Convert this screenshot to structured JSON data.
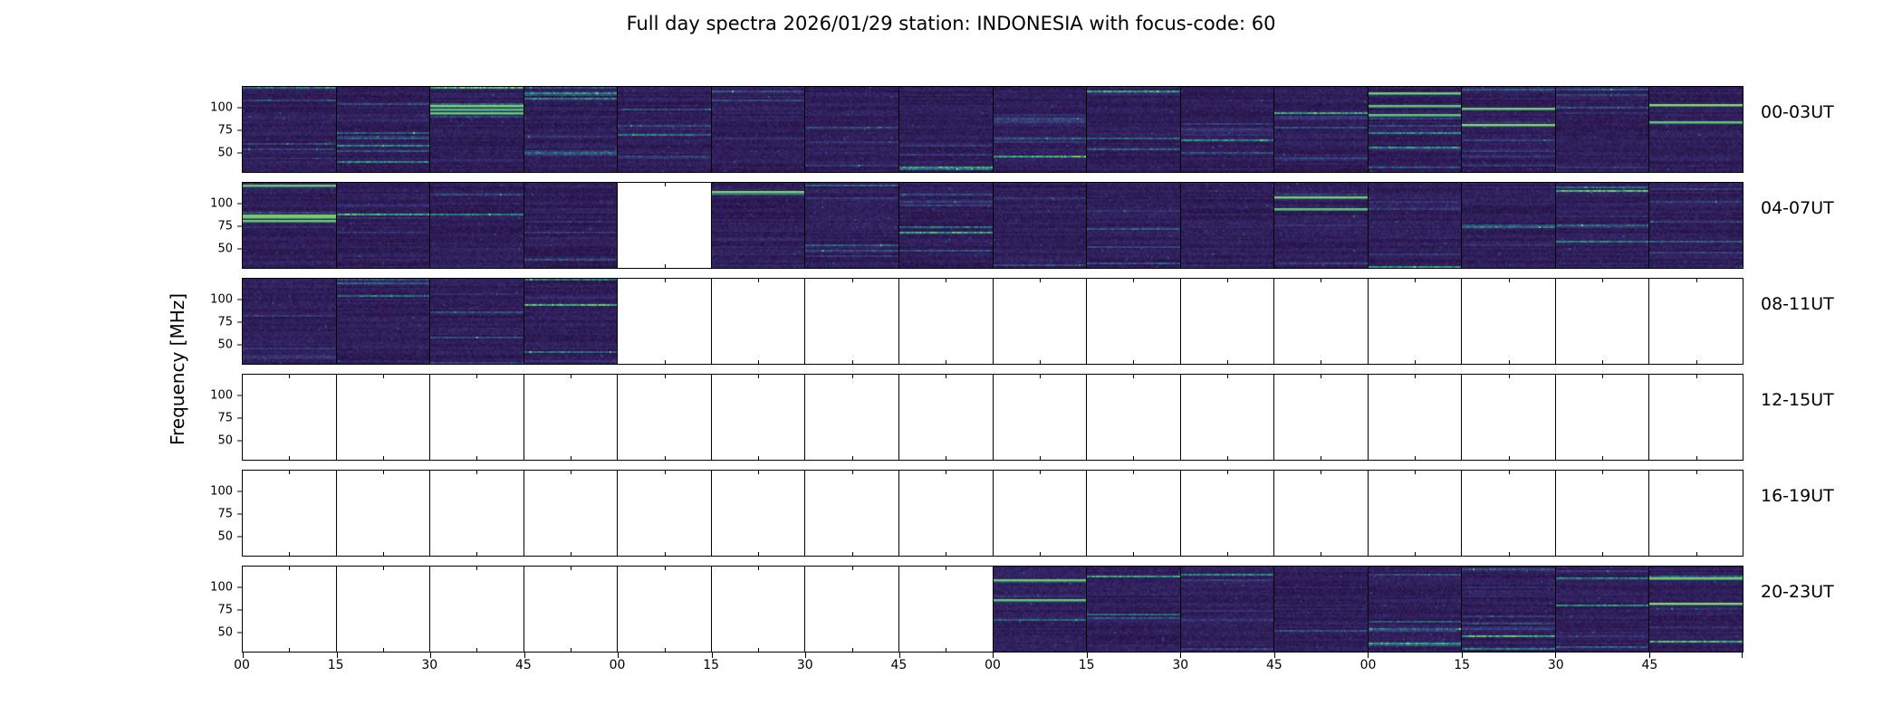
{
  "figure": {
    "title": "Full day spectra 2026/01/29 station: INDONESIA with focus-code: 60",
    "ylabel": "Frequency [MHz]",
    "freq_tick_labels": [
      "100",
      "75",
      "50"
    ],
    "x_tick_labels": [
      "00",
      "15",
      "30",
      "45",
      "00",
      "15",
      "30",
      "45",
      "00",
      "15",
      "30",
      "45",
      "00",
      "15",
      "30",
      "45"
    ],
    "rows": [
      {
        "label": "00-03UT",
        "filled": [
          1,
          1,
          1,
          1,
          1,
          1,
          1,
          1,
          1,
          1,
          1,
          1,
          1,
          1,
          1,
          1
        ],
        "bright_streak_panels": [
          2,
          12,
          13,
          15
        ]
      },
      {
        "label": "04-07UT",
        "filled": [
          1,
          1,
          1,
          1,
          0,
          1,
          1,
          1,
          1,
          1,
          1,
          1,
          1,
          1,
          1,
          1
        ],
        "bright_streak_panels": [
          0,
          5,
          11
        ]
      },
      {
        "label": "08-11UT",
        "filled": [
          1,
          1,
          1,
          1,
          0,
          0,
          0,
          0,
          0,
          0,
          0,
          0,
          0,
          0,
          0,
          0
        ],
        "bright_streak_panels": []
      },
      {
        "label": "12-15UT",
        "filled": [
          0,
          0,
          0,
          0,
          0,
          0,
          0,
          0,
          0,
          0,
          0,
          0,
          0,
          0,
          0,
          0
        ],
        "bright_streak_panels": []
      },
      {
        "label": "16-19UT",
        "filled": [
          0,
          0,
          0,
          0,
          0,
          0,
          0,
          0,
          0,
          0,
          0,
          0,
          0,
          0,
          0,
          0
        ],
        "bright_streak_panels": []
      },
      {
        "label": "20-23UT",
        "filled": [
          0,
          0,
          0,
          0,
          0,
          0,
          0,
          0,
          1,
          1,
          1,
          1,
          1,
          1,
          1,
          1
        ],
        "bright_streak_panels": [
          8,
          15
        ]
      }
    ],
    "colors": {
      "background": "#ffffff",
      "frame": "#000000",
      "spectrogram_base": "#2a1752",
      "spectrogram_teal": "#2a7080",
      "spectrogram_bright": "#90d860"
    }
  },
  "chart_data": {
    "type": "heatmap",
    "title": "Full day spectra 2026/01/29 station: INDONESIA with focus-code: 60",
    "ylabel": "Frequency [MHz]",
    "y_ticks": [
      100,
      75,
      50
    ],
    "x_tick_labels": [
      "00",
      "15",
      "30",
      "45",
      "00",
      "15",
      "30",
      "45",
      "00",
      "15",
      "30",
      "45",
      "00",
      "15",
      "30",
      "45"
    ],
    "colormap": "viridis",
    "legend_position": "none",
    "grid": false,
    "rows": [
      {
        "label": "00-03UT",
        "hours_ut": "00:00-03:59",
        "panels_with_data": [
          0,
          1,
          2,
          3,
          4,
          5,
          6,
          7,
          8,
          9,
          10,
          11,
          12,
          13,
          14,
          15
        ]
      },
      {
        "label": "04-07UT",
        "hours_ut": "04:00-07:59",
        "panels_with_data": [
          0,
          1,
          2,
          3,
          5,
          6,
          7,
          8,
          9,
          10,
          11,
          12,
          13,
          14,
          15
        ]
      },
      {
        "label": "08-11UT",
        "hours_ut": "08:00-11:59",
        "panels_with_data": [
          0,
          1,
          2,
          3
        ]
      },
      {
        "label": "12-15UT",
        "hours_ut": "12:00-15:59",
        "panels_with_data": []
      },
      {
        "label": "16-19UT",
        "hours_ut": "16:00-19:59",
        "panels_with_data": []
      },
      {
        "label": "20-23UT",
        "hours_ut": "20:00-23:59",
        "panels_with_data": [
          8,
          9,
          10,
          11,
          12,
          13,
          14,
          15
        ]
      }
    ],
    "panels_per_row": 16,
    "panel_duration_minutes": 15,
    "description": "Six stacked 4-hour strips of solar radio spectrograms (dark viridis background with horizontal teal/green emission streaks); missing 15-minute files are blank white panels."
  }
}
